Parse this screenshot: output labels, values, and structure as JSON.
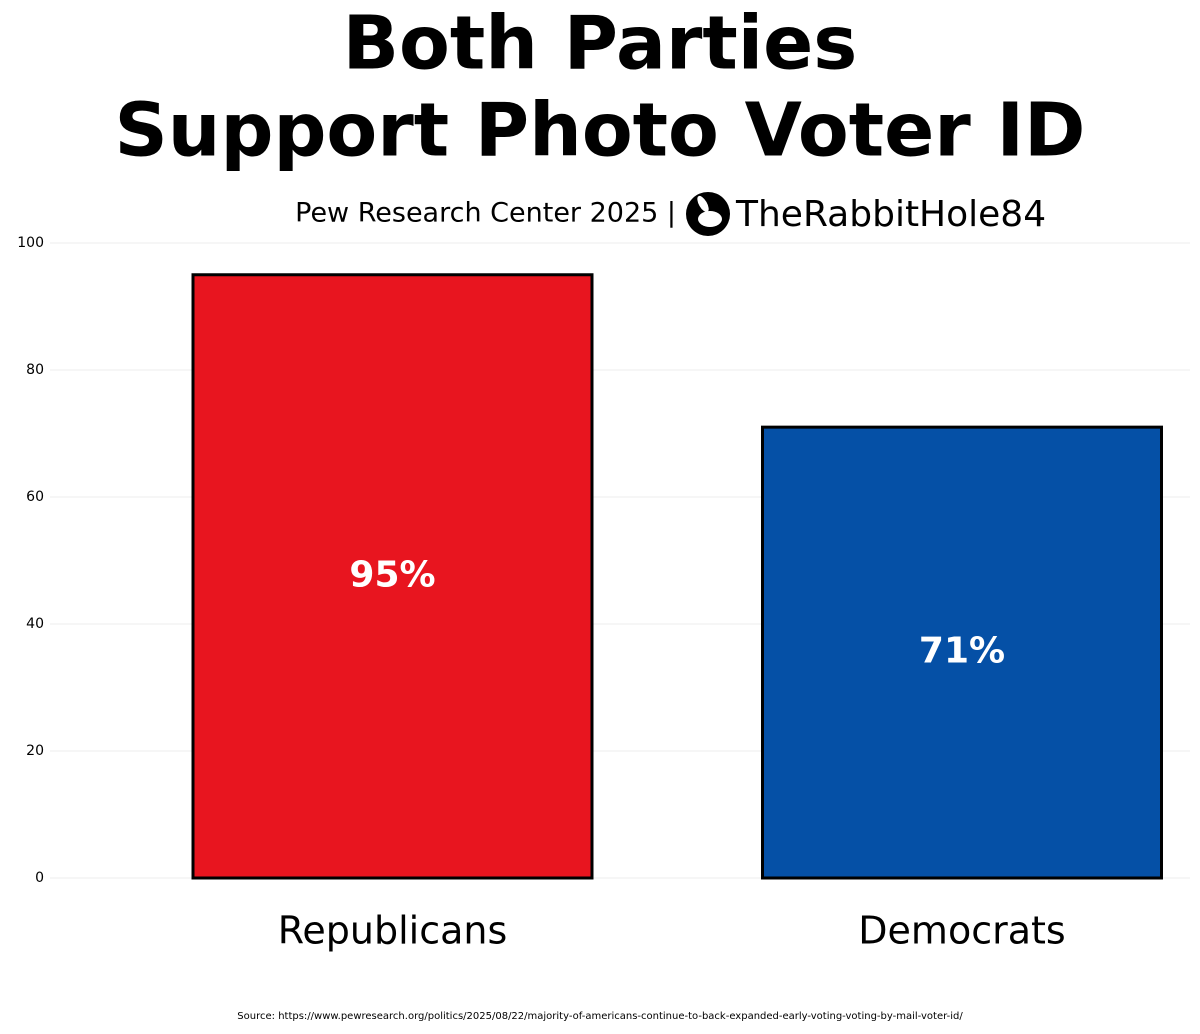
{
  "chart_data": {
    "type": "bar",
    "title": [
      "Both Parties",
      "Support Photo Voter ID"
    ],
    "subtitle": "Pew Research Center 2025 |",
    "brand": "TheRabbitHole84",
    "source": "Source: https://www.pewresearch.org/politics/2025/08/22/majority-of-americans-continue-to-back-expanded-early-voting-voting-by-mail-voter-id/",
    "categories": [
      "Republicans",
      "Democrats"
    ],
    "values": [
      95,
      71
    ],
    "value_labels": [
      "95%",
      "71%"
    ],
    "colors": [
      "#e8151f",
      "#0550a6"
    ],
    "ylim": [
      0,
      100
    ],
    "yticks": [
      0,
      20,
      40,
      60,
      80,
      100
    ],
    "grid": true
  }
}
